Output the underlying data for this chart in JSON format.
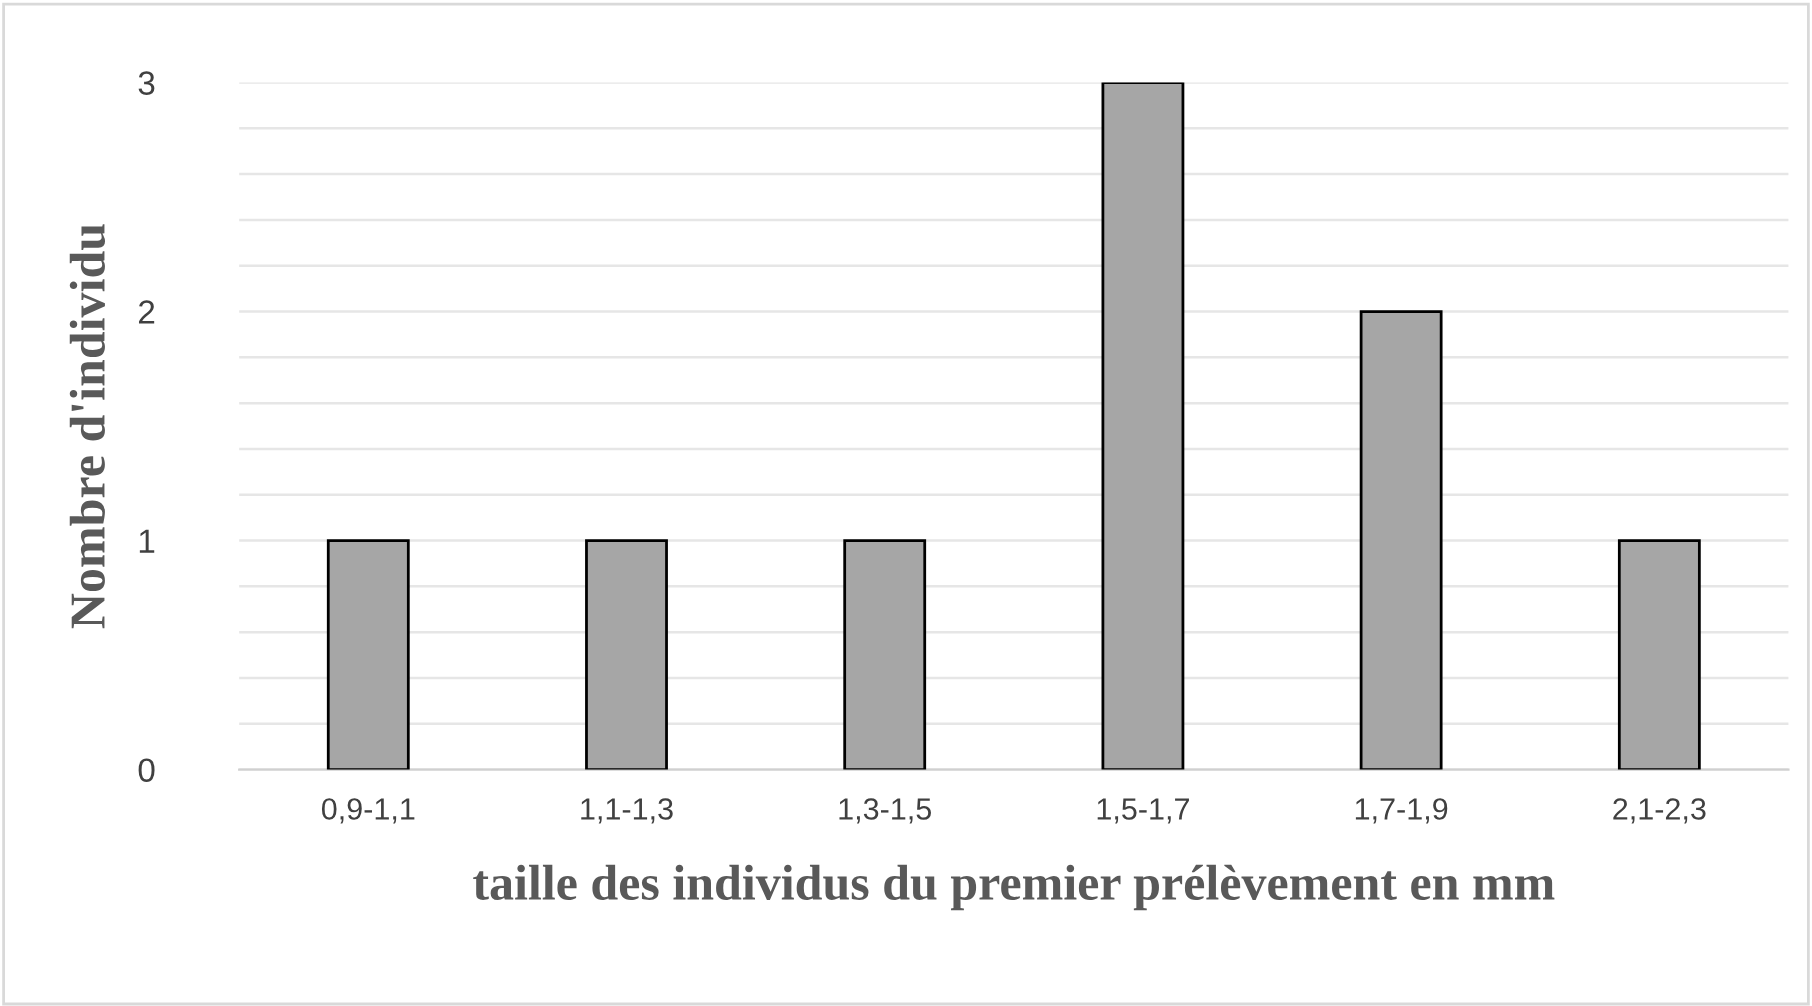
{
  "chart_data": {
    "type": "bar",
    "xlabel": "taille des individus du premier prélèvement en mm",
    "ylabel": "Nombre d'individu",
    "categories": [
      "0,9-1,1",
      "1,1-1,3",
      "1,3-1,5",
      "1,5-1,7",
      "1,7-1,9",
      "2,1-2,3"
    ],
    "values": [
      1,
      1,
      1,
      3,
      2,
      1
    ],
    "color": "#a6a6a6",
    "ylim": [
      0,
      3
    ],
    "yticks": [
      0,
      {
        "value": 0.2,
        "label": null
      },
      {
        "value": 0.4,
        "label": null
      },
      {
        "value": 0.6,
        "label": null
      },
      {
        "value": 0.8,
        "label": null
      },
      1,
      {
        "value": 1.2,
        "label": null
      },
      {
        "value": 1.4,
        "label": null
      },
      {
        "value": 1.6,
        "label": null
      },
      {
        "value": 1.8,
        "label": null
      },
      2,
      {
        "value": 2.2,
        "label": null
      },
      {
        "value": 2.4,
        "label": null
      },
      {
        "value": 2.6,
        "label": null
      },
      {
        "value": 2.8,
        "label": null
      },
      3
    ],
    "grid": "y"
  }
}
